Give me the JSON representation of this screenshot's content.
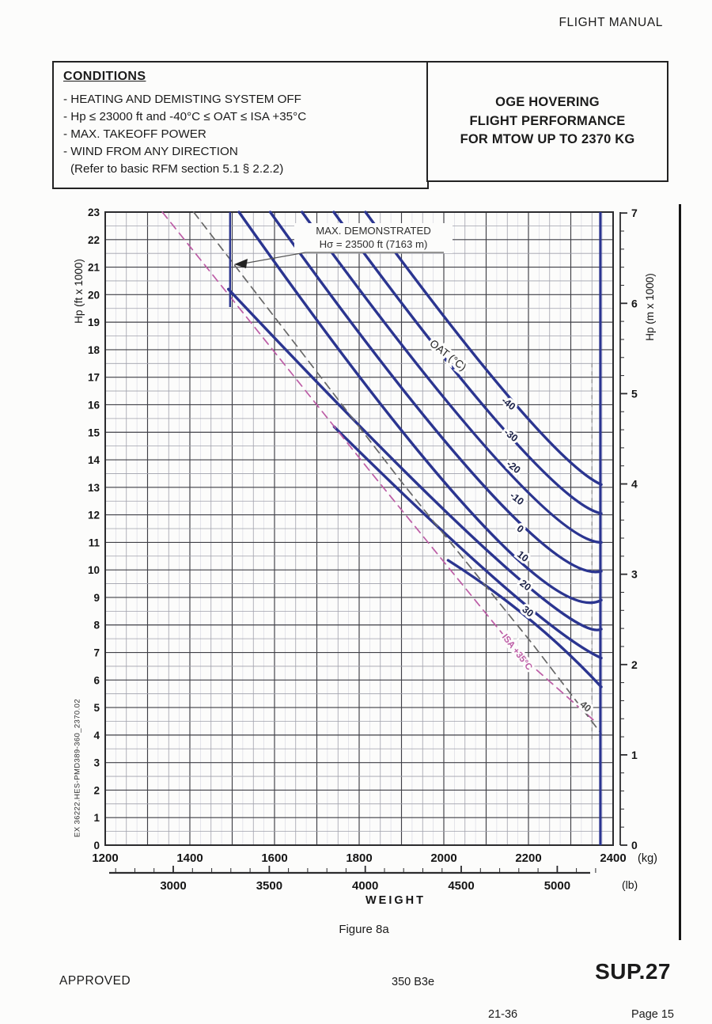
{
  "header": {
    "title": "FLIGHT MANUAL"
  },
  "conditions": {
    "title": "CONDITIONS",
    "items": [
      "- HEATING AND DEMISTING SYSTEM OFF",
      "- Hp ≤ 23000 ft and -40°C ≤ OAT ≤ ISA +35°C",
      "- MAX. TAKEOFF POWER",
      "- WIND FROM ANY DIRECTION"
    ],
    "note": "(Refer to basic RFM section 5.1 § 2.2.2)"
  },
  "title_box": {
    "line1": "OGE HOVERING",
    "line2": "FLIGHT PERFORMANCE",
    "line3": "FOR MTOW UP TO 2370 KG"
  },
  "figure_caption": "Figure 8a",
  "side_code": "EX 36222.HES-PMD389-360_2370.02",
  "footer": {
    "approved": "APPROVED",
    "model": "350 B3e",
    "sup": "SUP.27",
    "section": "21-36",
    "page": "Page 15"
  },
  "chart_data": {
    "type": "line",
    "title": "OGE hovering ceiling vs weight",
    "x_axis": {
      "label": "WEIGHT",
      "primary_unit": "(kg)",
      "primary_range": [
        1200,
        2400
      ],
      "primary_tick_labels": [
        1200,
        1400,
        1600,
        1800,
        2000,
        2200,
        2400
      ],
      "secondary_unit": "(lb)",
      "secondary_tick_labels": [
        3000,
        3500,
        4000,
        4500,
        5000
      ]
    },
    "y_left": {
      "label": "Hp (ft x 1000)",
      "range": [
        0,
        23
      ]
    },
    "y_right": {
      "label": "Hp (m x 1000)",
      "range": [
        0,
        7
      ]
    },
    "oat_title": {
      "text": "OAT (°C)",
      "pos": [
        2005,
        17.7
      ],
      "rot": 38
    },
    "annotation": {
      "line1": "MAX. DEMONSTRATED",
      "line2": "Hσ = 23500 ft (7163 m)"
    },
    "limits": {
      "max_demo_kg": 1495,
      "max_demo_from_kft": 23,
      "max_demo_to_kft": 19.55,
      "mtow_kg": 2370,
      "dashed_ref_kg": 2350,
      "dashed_ref_from_kft": 17.5,
      "dashed_ref_to_kft": 3.7
    },
    "series": [
      {
        "label": "-40",
        "kind": "curve",
        "points": [
          [
            1815,
            23
          ],
          [
            2170,
            16.0
          ],
          [
            2372,
            13.1
          ]
        ],
        "label_pos": [
          2148,
          15.95
        ],
        "label_rot": 38
      },
      {
        "label": "-30",
        "kind": "curve",
        "points": [
          [
            1740,
            23
          ],
          [
            2148,
            15.0
          ],
          [
            2372,
            12.05
          ]
        ],
        "label_pos": [
          2154,
          14.8
        ],
        "label_rot": 38
      },
      {
        "label": "-20",
        "kind": "curve",
        "points": [
          [
            1665,
            23
          ],
          [
            2126,
            14.0
          ],
          [
            2372,
            11.0
          ]
        ],
        "label_pos": [
          2160,
          13.65
        ],
        "label_rot": 38
      },
      {
        "label": "-10",
        "kind": "curve",
        "points": [
          [
            1590,
            23
          ],
          [
            2104,
            12.9
          ],
          [
            2372,
            9.95
          ]
        ],
        "label_pos": [
          2168,
          12.5
        ],
        "label_rot": 38
      },
      {
        "label": "0",
        "kind": "curve",
        "points": [
          [
            1516,
            23
          ],
          [
            2082,
            11.8
          ],
          [
            2372,
            8.9
          ]
        ],
        "label_pos": [
          2176,
          11.4
        ],
        "label_rot": 38
      },
      {
        "label": "10",
        "kind": "curve",
        "points": [
          [
            1491,
            20.2
          ],
          [
            2110,
            10.6
          ],
          [
            2372,
            7.85
          ]
        ],
        "label_pos": [
          2182,
          10.4
        ],
        "label_rot": 38
      },
      {
        "label": "20",
        "kind": "curve",
        "points": [
          [
            1741,
            15.2
          ],
          [
            2142,
            9.4
          ],
          [
            2372,
            6.8
          ]
        ],
        "label_pos": [
          2188,
          9.35
        ],
        "label_rot": 38
      },
      {
        "label": "30",
        "kind": "curve",
        "points": [
          [
            2010,
            10.35
          ],
          [
            2203,
            8.2
          ],
          [
            2372,
            5.75
          ]
        ],
        "label_pos": [
          2194,
          8.4
        ],
        "label_rot": 38
      },
      {
        "label": "ISA +35°C",
        "kind": "isa",
        "dash": true,
        "points": [
          [
            1335,
            23
          ],
          [
            1830,
            13.5
          ],
          [
            2180,
            6.9
          ],
          [
            2353,
            4.55
          ]
        ],
        "label_pos": [
          2168,
          6.95
        ],
        "label_rot": 52
      },
      {
        "label": "40",
        "kind": "ref",
        "dash": true,
        "points": [
          [
            1409,
            23
          ],
          [
            1900,
            13.2
          ],
          [
            2210,
            7.3
          ],
          [
            2372,
            4.05
          ]
        ],
        "label_pos": [
          2330,
          4.95
        ],
        "label_rot": 40
      }
    ],
    "colors": {
      "curve": "#2b3590",
      "isa": "#bd5da6",
      "ref": "#686868",
      "grid_major": "#3f3f46",
      "grid_mid": "#9fa0ab",
      "grid_light": "#dadbe3",
      "frame": "#2b2b2e",
      "curve_label": "#1b2147",
      "isa_label": "#bd5da6",
      "ref_label": "#4f4f4f",
      "text": "#1f1f1f"
    }
  }
}
